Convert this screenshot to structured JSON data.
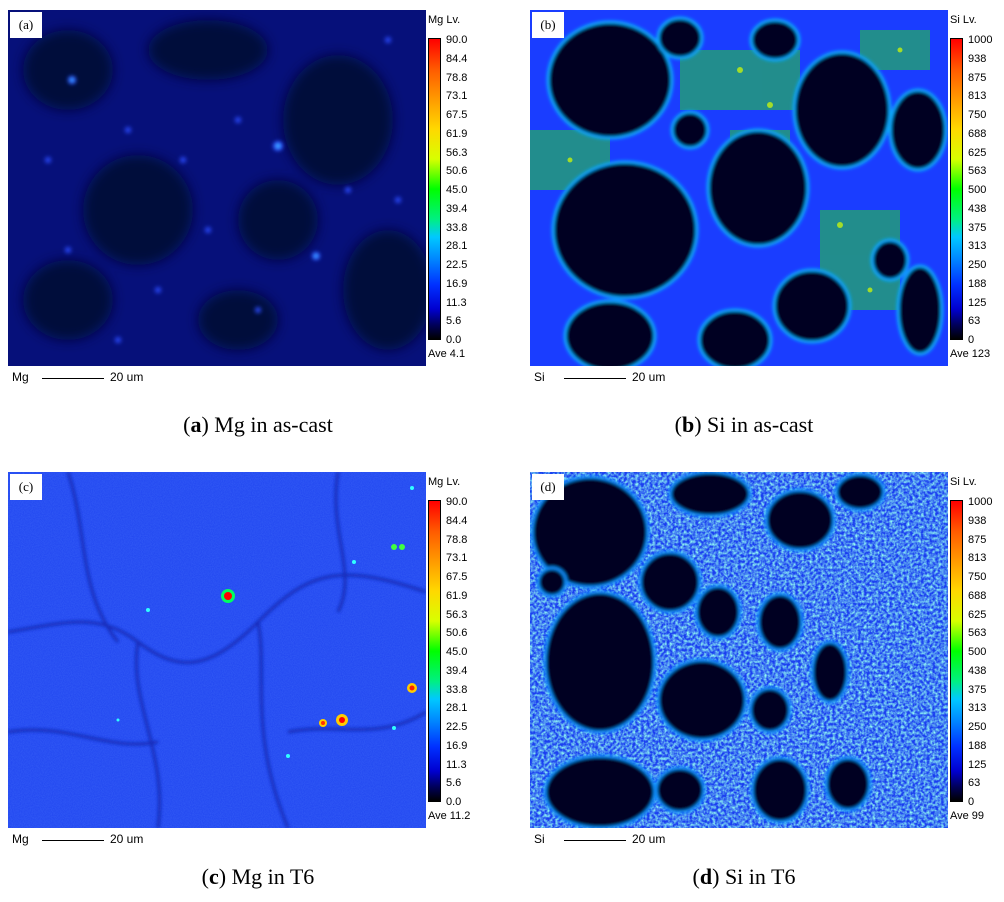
{
  "panels": [
    {
      "letter": "(a)",
      "scale_title": "Mg Lv.",
      "ticks": [
        "90.0",
        "84.4",
        "78.8",
        "73.1",
        "67.5",
        "61.9",
        "56.3",
        "50.6",
        "45.0",
        "39.4",
        "33.8",
        "28.1",
        "22.5",
        "16.9",
        "11.3",
        "5.6",
        "0.0"
      ],
      "average": "Ave 4.1",
      "element": "Mg",
      "scalebar_length": "20 um",
      "caption_letter": "a",
      "caption_text": ") Mg in as-cast"
    },
    {
      "letter": "(b)",
      "scale_title": "Si Lv.",
      "ticks": [
        "1000",
        "938",
        "875",
        "813",
        "750",
        "688",
        "625",
        "563",
        "500",
        "438",
        "375",
        "313",
        "250",
        "188",
        "125",
        "63",
        "0"
      ],
      "average": "Ave 123",
      "element": "Si",
      "scalebar_length": "20 um",
      "caption_letter": "b",
      "caption_text": ") Si in as-cast"
    },
    {
      "letter": "(c)",
      "scale_title": "Mg Lv.",
      "ticks": [
        "90.0",
        "84.4",
        "78.8",
        "73.1",
        "67.5",
        "61.9",
        "56.3",
        "50.6",
        "45.0",
        "39.4",
        "33.8",
        "28.1",
        "22.5",
        "16.9",
        "11.3",
        "5.6",
        "0.0"
      ],
      "average": "Ave 11.2",
      "element": "Mg",
      "scalebar_length": "20 um",
      "caption_letter": "c",
      "caption_text": ") Mg in T6"
    },
    {
      "letter": "(d)",
      "scale_title": "Si Lv.",
      "ticks": [
        "1000",
        "938",
        "875",
        "813",
        "750",
        "688",
        "625",
        "563",
        "500",
        "438",
        "375",
        "313",
        "250",
        "188",
        "125",
        "63",
        "0"
      ],
      "average": "Ave 99",
      "element": "Si",
      "scalebar_length": "20 um",
      "caption_letter": "d",
      "caption_text": ") Si in T6"
    }
  ]
}
